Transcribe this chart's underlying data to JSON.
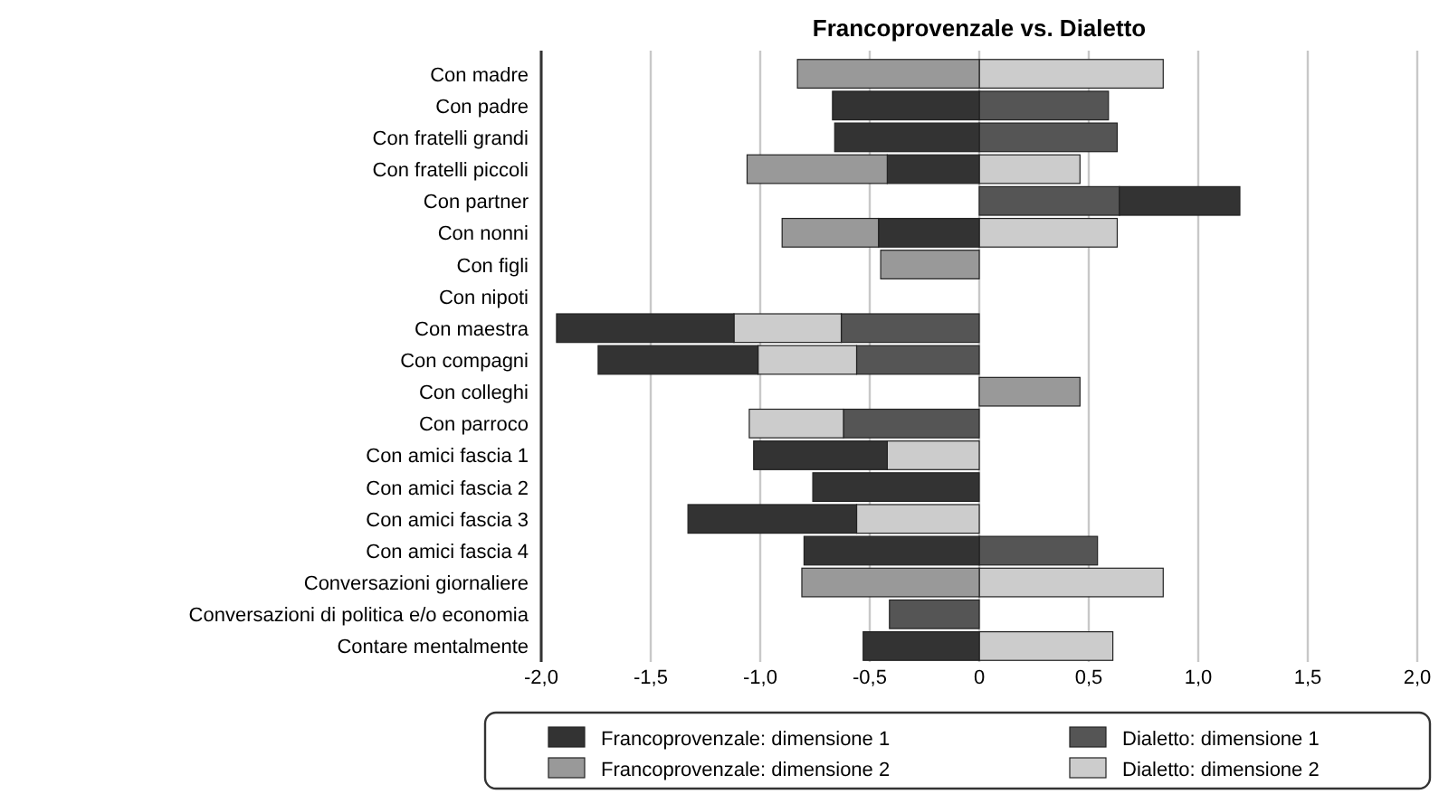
{
  "chart_data": {
    "type": "bar",
    "orientation": "horizontal",
    "stacked": true,
    "title": "Francoprovenzale vs. Dialetto",
    "categories": [
      "Con madre",
      "Con padre",
      "Con fratelli grandi",
      "Con fratelli piccoli",
      "Con partner",
      "Con nonni",
      "Con figli",
      "Con nipoti",
      "Con maestra",
      "Con compagni",
      "Con colleghi",
      "Con parroco",
      "Con amici fascia 1",
      "Con amici fascia 2",
      "Con amici fascia 3",
      "Con amici fascia 4",
      "Conversazioni giornaliere",
      "Conversazioni di politica e/o economia",
      "Contare mentalmente"
    ],
    "series": [
      {
        "name": "Dialetto: dimensione 1",
        "color": "#555555",
        "values": [
          null,
          0.59,
          0.63,
          null,
          0.64,
          null,
          null,
          null,
          -0.63,
          -0.56,
          null,
          -0.62,
          null,
          null,
          null,
          0.54,
          null,
          -0.41,
          null
        ]
      },
      {
        "name": "Dialetto: dimensione 2",
        "color": "#cccccc",
        "values": [
          0.84,
          null,
          null,
          0.46,
          null,
          0.63,
          null,
          null,
          -0.49,
          -0.45,
          null,
          -0.43,
          -0.42,
          null,
          -0.56,
          null,
          0.84,
          null,
          0.61
        ]
      },
      {
        "name": "Francoprovenzale: dimensione 1",
        "color": "#333333",
        "values": [
          null,
          -0.67,
          -0.66,
          -0.42,
          0.55,
          -0.46,
          null,
          null,
          -0.81,
          -0.73,
          null,
          null,
          -0.61,
          -0.76,
          -0.77,
          -0.8,
          null,
          null,
          -0.53
        ]
      },
      {
        "name": "Francoprovenzale: dimensione 2",
        "color": "#999999",
        "values": [
          -0.83,
          null,
          null,
          -0.64,
          null,
          -0.44,
          -0.45,
          null,
          null,
          null,
          0.46,
          null,
          null,
          null,
          null,
          null,
          -0.81,
          null,
          null
        ]
      }
    ],
    "xlim": [
      -2,
      2
    ],
    "xticks": [
      {
        "value": -2,
        "label": "-2,0"
      },
      {
        "value": -1.5,
        "label": "-1,5"
      },
      {
        "value": -1,
        "label": "-1,0"
      },
      {
        "value": -0.5,
        "label": "-0,5"
      },
      0,
      {
        "value": 0.5,
        "label": "0,5"
      },
      {
        "value": 1,
        "label": "1,0"
      },
      {
        "value": 1.5,
        "label": "1,5"
      },
      {
        "value": 2,
        "label": "2,0"
      }
    ],
    "grid": "x",
    "legend": "bottom"
  }
}
